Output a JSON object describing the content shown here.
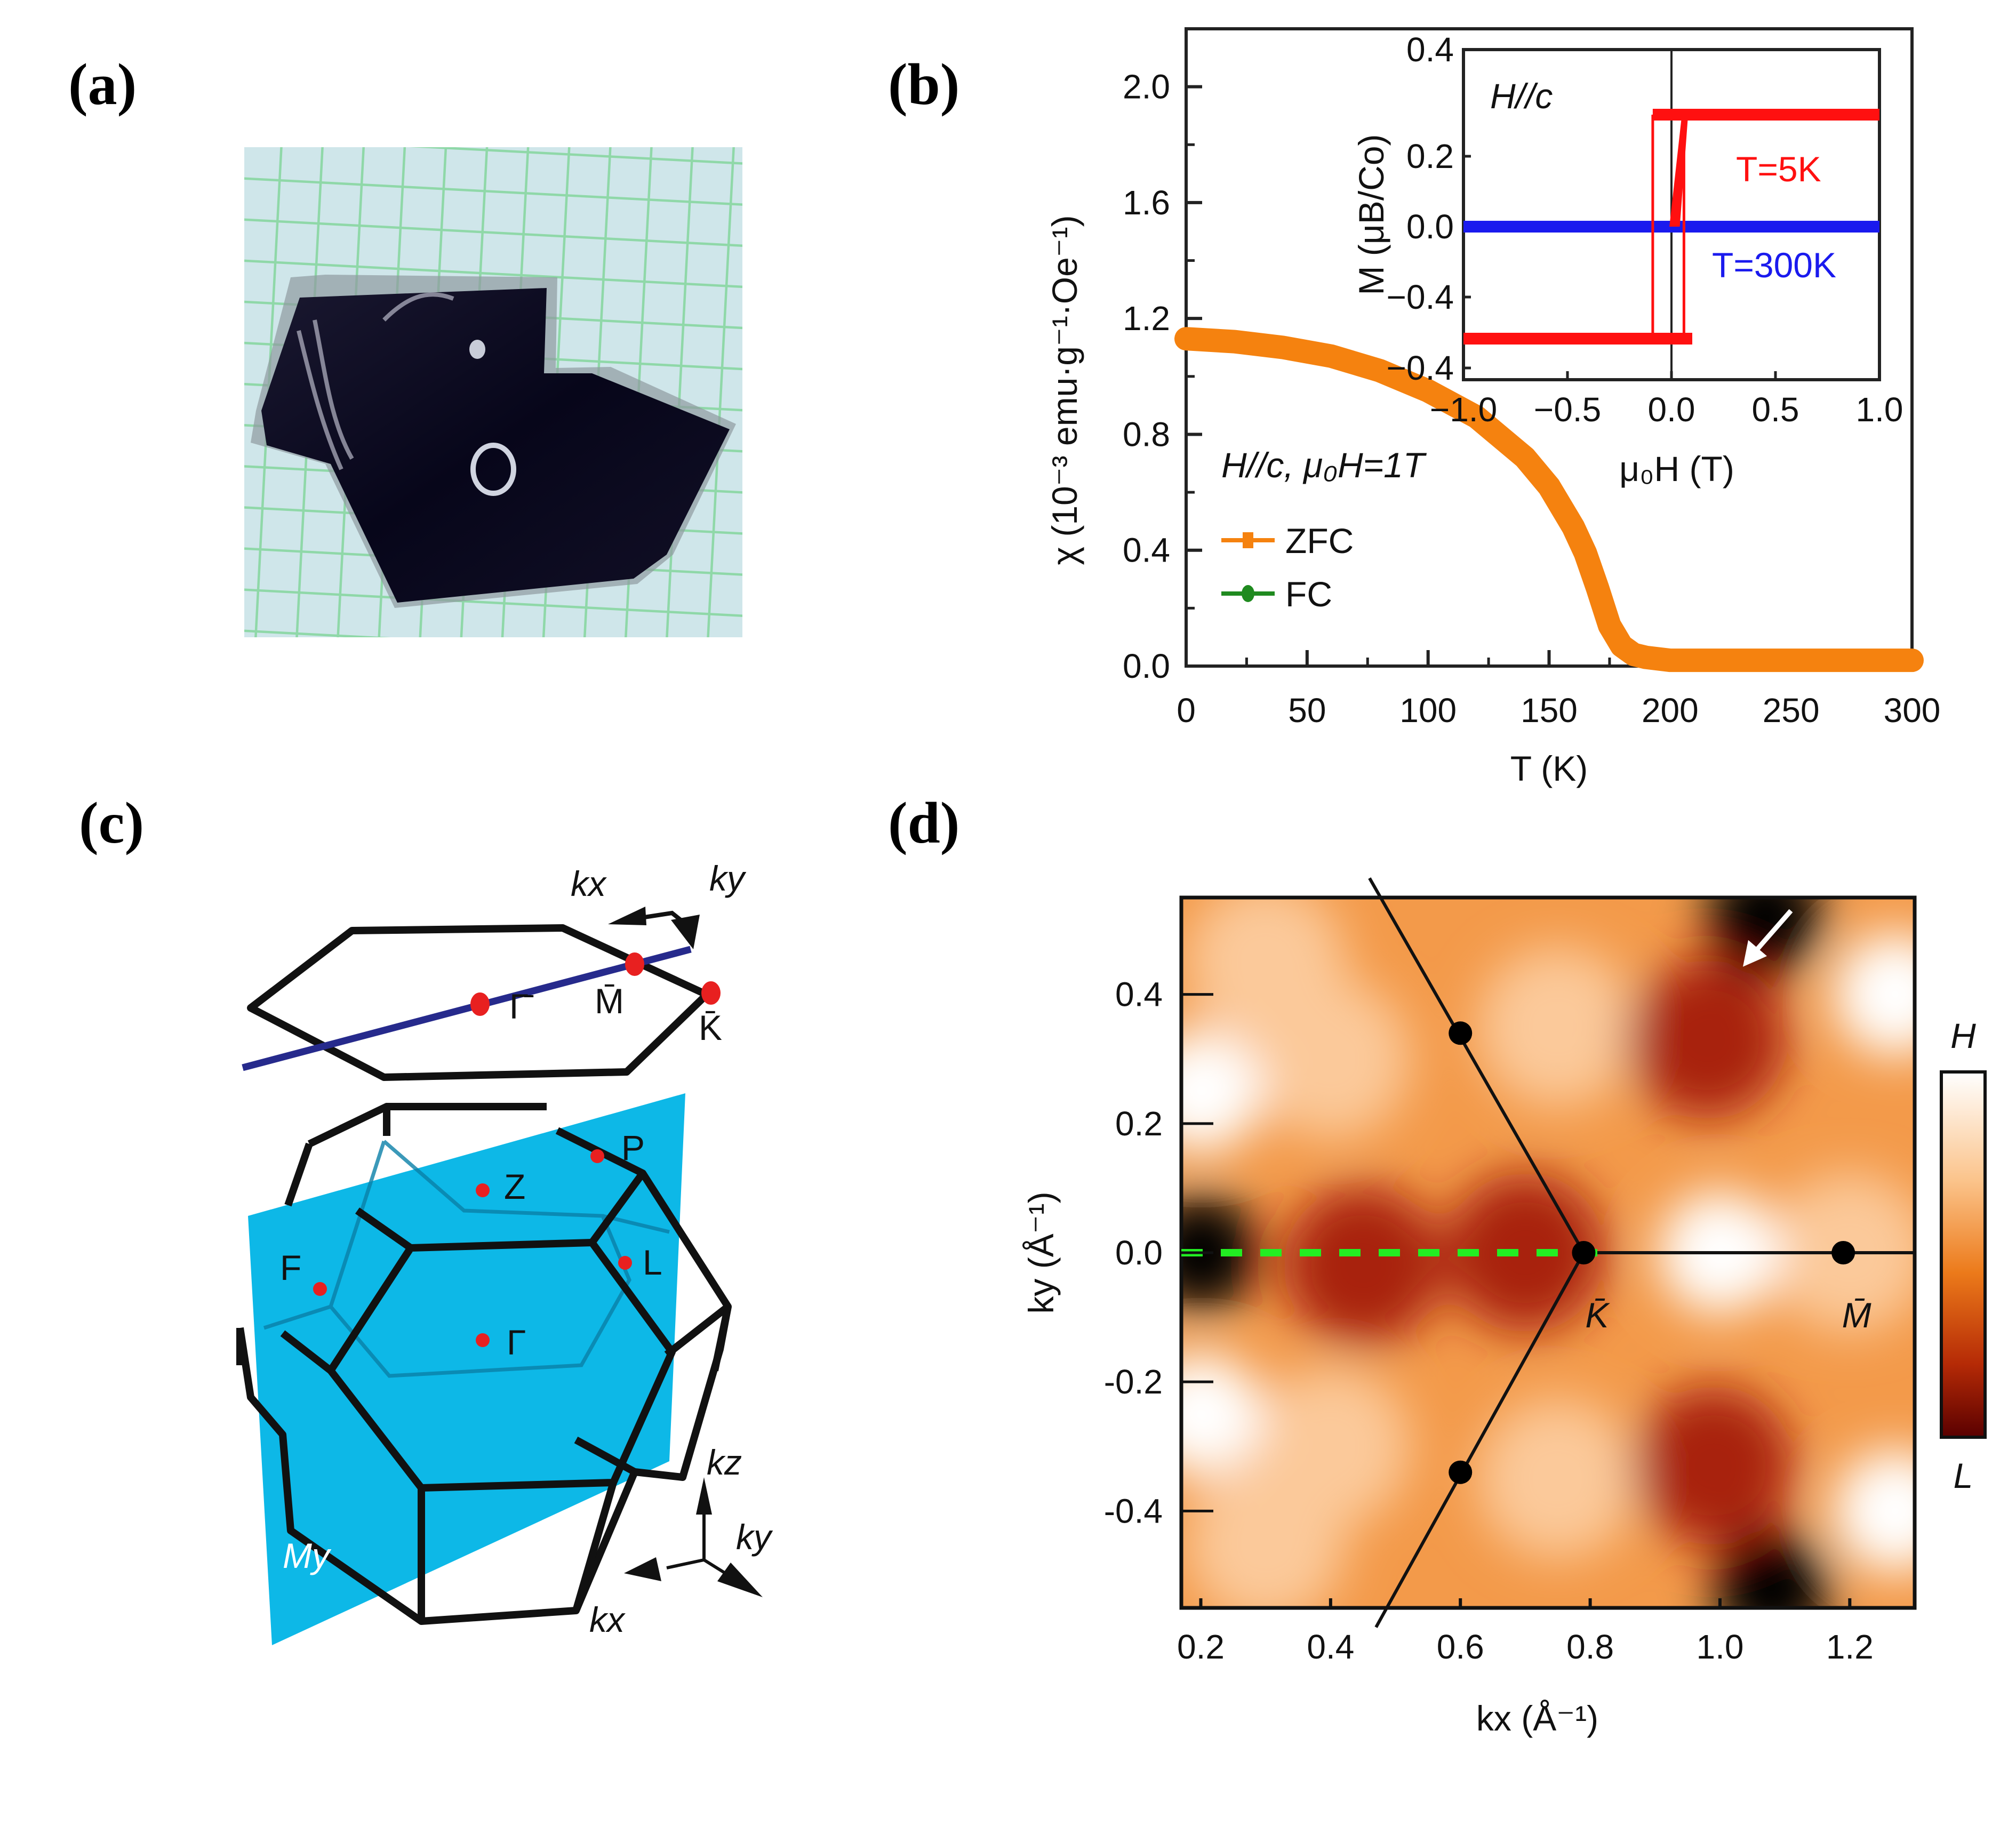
{
  "panels": {
    "a": {
      "label": "(a)",
      "description": "photo of crystal on green grid paper"
    },
    "b": {
      "label": "(b)"
    },
    "c": {
      "label": "(c)"
    },
    "d": {
      "label": "(d)"
    }
  },
  "colors": {
    "zfc": "#f5820f",
    "fc": "#1f8a1f",
    "t5k": "#ff1010",
    "t300k": "#1a1aee",
    "plane": "#00b4e6",
    "surface_line": "#262a8c",
    "hs_point": "#e82020",
    "dashed_line": "#22ee22"
  },
  "chart_data": [
    {
      "type": "line",
      "panel": "b",
      "xlabel": "T (K)",
      "ylabel": "χ (10⁻³ emu·g⁻¹·Oe⁻¹)",
      "xlim": [
        0,
        300
      ],
      "ylim": [
        0,
        2.2
      ],
      "xticks": [
        "0",
        "50",
        "100",
        "150",
        "200",
        "250",
        "300"
      ],
      "yticks": [
        "0.0",
        "0.4",
        "0.8",
        "1.2",
        "1.6",
        "2.0"
      ],
      "legend_title": "H//c, μ₀H=1T",
      "legend_position": "left-middle",
      "series": [
        {
          "name": "ZFC",
          "marker": "square",
          "x": [
            0,
            20,
            40,
            60,
            80,
            100,
            120,
            140,
            150,
            160,
            165,
            170,
            175,
            180,
            185,
            190,
            200,
            220,
            250,
            300
          ],
          "y": [
            1.13,
            1.12,
            1.1,
            1.07,
            1.02,
            0.95,
            0.86,
            0.72,
            0.62,
            0.48,
            0.39,
            0.27,
            0.14,
            0.07,
            0.04,
            0.03,
            0.02,
            0.02,
            0.02,
            0.02
          ]
        },
        {
          "name": "FC",
          "marker": "circle",
          "x": [
            0,
            20,
            40,
            60,
            80,
            100,
            120,
            140,
            150,
            160,
            165,
            170,
            175,
            180,
            185,
            190,
            200,
            220,
            250,
            300
          ],
          "y": [
            1.14,
            1.13,
            1.11,
            1.08,
            1.03,
            0.96,
            0.87,
            0.73,
            0.63,
            0.49,
            0.4,
            0.28,
            0.15,
            0.08,
            0.05,
            0.035,
            0.025,
            0.02,
            0.02,
            0.02
          ]
        }
      ],
      "inset": {
        "type": "line",
        "xlabel": "μ₀H (T)",
        "ylabel": "M (μB/Co)",
        "xlim": [
          -1.0,
          1.0
        ],
        "ylim": [
          -0.4,
          0.4
        ],
        "xticks": [
          "−1.0",
          "−0.5",
          "0.0",
          "0.5",
          "1.0"
        ],
        "yticks": [
          "0.4",
          "0.2",
          "0.0",
          "−0.4",
          "−0.4"
        ],
        "annotation": "H//c",
        "series": [
          {
            "name": "T=5K",
            "loop": true,
            "x": [
              -1.0,
              0.1,
              0.1,
              0.05,
              0.0,
              -0.1,
              -0.1,
              1.0
            ],
            "y": [
              -0.31,
              -0.31,
              -0.31,
              0.3,
              0.0,
              -0.31,
              0.3,
              0.3
            ],
            "saturation": 0.3,
            "coercive_field": 0.08
          },
          {
            "name": "T=300K",
            "x": [
              -1.0,
              1.0
            ],
            "y": [
              0.0,
              0.0
            ]
          }
        ]
      }
    },
    {
      "type": "heatmap",
      "panel": "d",
      "xlabel": "kx (Å⁻¹)",
      "ylabel": "ky (Å⁻¹)",
      "xlim": [
        0.17,
        1.3
      ],
      "ylim": [
        -0.55,
        0.55
      ],
      "xticks": [
        "0.2",
        "0.4",
        "0.6",
        "0.8",
        "1.0",
        "1.2"
      ],
      "yticks": [
        "0.4",
        "0.2",
        "0.0",
        "-0.2",
        "-0.4"
      ],
      "colorbar": {
        "top_label": "H",
        "bottom_label": "L",
        "colormap": "white-orange-darkred"
      },
      "point_labels": [
        {
          "text": "K̄",
          "kx": 0.79,
          "ky": 0.0
        },
        {
          "text": "M̄",
          "kx": 1.19,
          "ky": 0.0
        }
      ],
      "markers": [
        {
          "kx": 0.6,
          "ky": 0.34
        },
        {
          "kx": 0.79,
          "ky": 0.0
        },
        {
          "kx": 1.19,
          "ky": 0.0
        },
        {
          "kx": 0.6,
          "ky": -0.34
        }
      ],
      "bz_lines": [
        {
          "from": [
            0.46,
            0.58
          ],
          "to": [
            0.79,
            0.0
          ]
        },
        {
          "from": [
            0.79,
            0.0
          ],
          "to": [
            0.47,
            -0.58
          ]
        },
        {
          "from": [
            0.79,
            0.0
          ],
          "to": [
            1.3,
            0.0
          ]
        }
      ],
      "cut_line": {
        "from": [
          0.17,
          0.0
        ],
        "to": [
          0.83,
          0.0
        ],
        "style": "dashed"
      },
      "arrow": {
        "position": [
          1.06,
          0.48
        ],
        "direction": "down-left"
      },
      "dark_spots": [
        [
          0.2,
          0.0
        ],
        [
          0.45,
          -0.02
        ],
        [
          0.98,
          0.33
        ],
        [
          0.99,
          -0.33
        ],
        [
          1.07,
          0.52
        ],
        [
          1.08,
          -0.52
        ],
        [
          0.7,
          0.0
        ]
      ],
      "bright_spots": [
        [
          0.2,
          0.25
        ],
        [
          0.2,
          -0.25
        ],
        [
          1.27,
          0.4
        ],
        [
          1.27,
          -0.4
        ],
        [
          1.0,
          0.0
        ]
      ]
    }
  ],
  "diagram_c": {
    "surface_bz_labels": [
      "Γ̄",
      "M̄",
      "K̄"
    ],
    "axis_labels_top": [
      "kx",
      "ky"
    ],
    "bulk_bz_labels": [
      "P",
      "Z",
      "L",
      "F",
      "Γ"
    ],
    "mirror_plane_label": "My",
    "axis_labels_bottom": [
      "kz",
      "ky",
      "kx"
    ]
  }
}
